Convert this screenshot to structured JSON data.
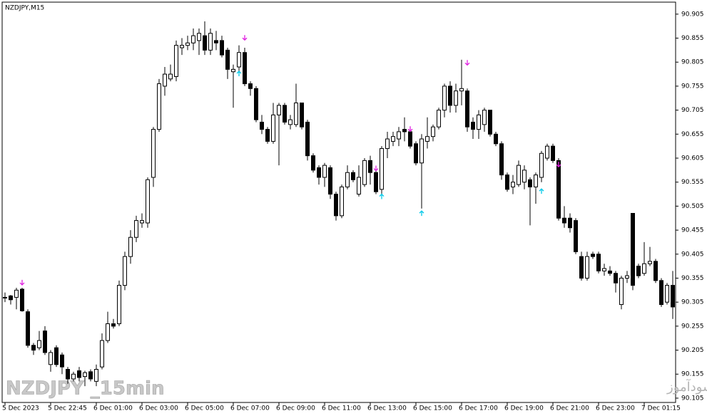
{
  "chart_data": {
    "type": "candlestick",
    "title": "NZDJPY,M15",
    "watermark": "NZDJPY _15min",
    "annotation": "انتشار در سایت سودآموز",
    "categories": [
      "5 Dec 2023",
      null,
      null,
      null,
      null,
      null,
      null,
      null,
      "5 Dec 22:45",
      null,
      null,
      null,
      null,
      null,
      null,
      null,
      "6 Dec 01:00",
      null,
      null,
      null,
      null,
      null,
      null,
      null,
      "6 Dec 03:00",
      null,
      null,
      null,
      null,
      null,
      null,
      null,
      "6 Dec 05:00",
      null,
      null,
      null,
      null,
      null,
      null,
      null,
      "6 Dec 07:00",
      null,
      null,
      null,
      null,
      null,
      null,
      null,
      "6 Dec 09:00",
      null,
      null,
      null,
      null,
      null,
      null,
      null,
      "6 Dec 11:00",
      null,
      null,
      null,
      null,
      null,
      null,
      null,
      "6 Dec 13:00",
      null,
      null,
      null,
      null,
      null,
      null,
      null,
      "6 Dec 15:00",
      null,
      null,
      null,
      null,
      null,
      null,
      null,
      "6 Dec 17:00",
      null,
      null,
      null,
      null,
      null,
      null,
      null,
      "6 Dec 19:00",
      null,
      null,
      null,
      null,
      null,
      null,
      null,
      "6 Dec 21:00",
      null,
      null,
      null,
      null,
      null,
      null,
      null,
      "6 Dec 23:00",
      null,
      null,
      null,
      null,
      null,
      null,
      null,
      "7 Dec 01:15",
      null,
      null,
      null,
      null,
      null
    ],
    "open": [
      90.315,
      90.318,
      90.315,
      90.332,
      90.285,
      90.215,
      90.21,
      90.245,
      90.175,
      90.21,
      90.195,
      90.165,
      90.145,
      90.162,
      90.15,
      90.16,
      90.14,
      90.17,
      90.225,
      90.26,
      90.26,
      90.34,
      90.4,
      90.44,
      90.47,
      90.47,
      90.565,
      90.665,
      90.755,
      90.77,
      90.775,
      90.835,
      90.84,
      90.845,
      90.85,
      90.86,
      90.83,
      90.85,
      90.85,
      90.83,
      90.785,
      90.795,
      90.825,
      90.76,
      90.75,
      90.68,
      90.665,
      90.64,
      90.695,
      90.715,
      90.675,
      90.675,
      90.72,
      90.68,
      90.61,
      90.585,
      90.565,
      90.585,
      90.53,
      90.485,
      90.545,
      90.575,
      90.53,
      90.55,
      90.6,
      90.575,
      90.54,
      90.625,
      90.64,
      90.645,
      90.665,
      90.66,
      90.635,
      90.595,
      90.64,
      90.65,
      90.67,
      90.705,
      90.755,
      90.715,
      90.745,
      90.745,
      90.68,
      90.665,
      90.675,
      90.705,
      90.655,
      90.635,
      90.57,
      90.545,
      90.55,
      90.555,
      90.56,
      90.545,
      90.565,
      90.605,
      90.63,
      90.6,
      90.48,
      90.48,
      90.475,
      90.4,
      90.355,
      90.405,
      90.405,
      90.37,
      90.37,
      90.365,
      90.3,
      90.355,
      90.49,
      90.38,
      90.365,
      90.385,
      90.39,
      90.35,
      90.305,
      90.34
    ],
    "high": [
      90.325,
      90.32,
      90.335,
      90.335,
      90.29,
      90.22,
      90.245,
      90.255,
      90.205,
      90.215,
      90.2,
      90.17,
      90.16,
      90.17,
      90.162,
      90.165,
      90.175,
      90.24,
      90.285,
      90.27,
      90.35,
      90.41,
      90.455,
      90.485,
      90.49,
      90.565,
      90.67,
      90.77,
      90.795,
      90.8,
      90.85,
      90.855,
      90.86,
      90.875,
      90.875,
      90.89,
      90.875,
      90.87,
      90.86,
      90.835,
      90.8,
      90.84,
      90.835,
      90.765,
      90.755,
      90.695,
      90.67,
      90.72,
      90.72,
      90.72,
      90.695,
      90.76,
      90.72,
      90.685,
      90.615,
      90.59,
      90.595,
      90.59,
      90.535,
      90.55,
      90.59,
      90.58,
      90.59,
      90.605,
      90.61,
      90.58,
      90.63,
      90.66,
      90.66,
      90.67,
      90.69,
      90.665,
      90.64,
      90.655,
      90.69,
      90.675,
      90.71,
      90.76,
      90.765,
      90.76,
      90.81,
      90.75,
      90.69,
      90.705,
      90.71,
      90.705,
      90.66,
      90.64,
      90.575,
      90.57,
      90.6,
      90.59,
      90.565,
      90.575,
      90.62,
      90.635,
      90.635,
      90.605,
      90.505,
      90.49,
      90.48,
      90.41,
      90.41,
      90.41,
      90.41,
      90.385,
      90.38,
      90.37,
      90.36,
      90.37,
      90.49,
      90.385,
      90.43,
      90.42,
      90.395,
      90.355,
      90.345,
      90.37
    ],
    "low": [
      90.305,
      90.3,
      90.29,
      90.285,
      90.21,
      90.195,
      90.205,
      90.195,
      90.16,
      90.17,
      90.155,
      90.135,
      90.14,
      90.14,
      90.13,
      90.14,
      90.13,
      90.165,
      90.22,
      90.25,
      90.255,
      90.33,
      90.385,
      90.43,
      90.46,
      90.46,
      90.545,
      90.66,
      90.735,
      90.765,
      90.765,
      90.82,
      90.83,
      90.83,
      90.82,
      90.82,
      90.82,
      90.83,
      90.815,
      90.77,
      90.71,
      90.785,
      90.755,
      90.735,
      90.68,
      90.655,
      90.635,
      90.635,
      90.59,
      90.675,
      90.665,
      90.67,
      90.665,
      90.6,
      90.575,
      90.55,
      90.545,
      90.52,
      90.475,
      90.48,
      90.54,
      90.555,
      90.525,
      90.545,
      90.55,
      90.53,
      90.525,
      90.605,
      90.63,
      90.63,
      90.64,
      90.625,
      90.59,
      90.5,
      90.625,
      90.64,
      90.665,
      90.69,
      90.7,
      90.7,
      90.715,
      90.66,
      90.645,
      90.645,
      90.66,
      90.65,
      90.63,
      90.56,
      90.535,
      90.53,
      90.545,
      90.54,
      90.465,
      90.51,
      90.555,
      90.6,
      90.595,
      90.475,
      90.46,
      90.45,
      90.405,
      90.35,
      90.35,
      90.395,
      90.365,
      90.36,
      90.36,
      90.325,
      90.29,
      90.345,
      90.33,
      90.355,
      90.36,
      90.38,
      90.345,
      90.295,
      90.3,
      90.27
    ],
    "close": [
      90.315,
      90.31,
      90.33,
      90.287,
      90.215,
      90.205,
      90.225,
      90.2,
      90.2,
      90.175,
      90.17,
      90.145,
      90.155,
      90.148,
      90.158,
      90.145,
      90.165,
      90.225,
      90.26,
      90.255,
      90.34,
      90.4,
      90.44,
      90.475,
      90.475,
      90.56,
      90.665,
      90.76,
      90.78,
      90.78,
      90.84,
      90.84,
      90.845,
      90.86,
      90.865,
      90.83,
      90.865,
      90.845,
      90.82,
      90.79,
      90.79,
      90.825,
      90.76,
      90.75,
      90.685,
      90.665,
      90.64,
      90.695,
      90.715,
      90.68,
      90.685,
      90.72,
      90.67,
      90.61,
      90.58,
      90.565,
      90.59,
      90.53,
      90.485,
      90.545,
      90.575,
      90.56,
      90.565,
      90.6,
      90.575,
      90.535,
      90.625,
      90.645,
      90.65,
      90.66,
      90.66,
      90.63,
      90.595,
      90.645,
      90.65,
      90.67,
      90.705,
      90.755,
      90.715,
      90.745,
      90.75,
      90.67,
      90.665,
      90.695,
      90.705,
      90.655,
      90.635,
      90.57,
      90.54,
      90.555,
      90.59,
      90.58,
      90.545,
      90.57,
      90.615,
      90.63,
      90.6,
      90.48,
      90.47,
      90.46,
      90.41,
      90.355,
      90.4,
      90.4,
      90.37,
      90.375,
      90.365,
      90.345,
      90.355,
      90.36,
      90.34,
      90.36,
      90.385,
      90.39,
      90.35,
      90.3,
      90.34,
      90.295
    ],
    "up_color": "#ffffff",
    "down_color": "#000000",
    "sell_arrows": {
      "color": "#e020e0",
      "points": [
        {
          "x": 3,
          "y": 90.341
        },
        {
          "x": 42,
          "y": 90.851
        },
        {
          "x": 65,
          "y": 90.579
        },
        {
          "x": 71,
          "y": 90.661
        },
        {
          "x": 81,
          "y": 90.799
        },
        {
          "x": 97,
          "y": 90.587
        }
      ]
    },
    "buy_arrows": {
      "color": "#00c8e8",
      "points": [
        {
          "x": 41,
          "y": 90.786
        },
        {
          "x": 66,
          "y": 90.53
        },
        {
          "x": 73,
          "y": 90.495
        },
        {
          "x": 94,
          "y": 90.541
        }
      ]
    },
    "ylim": [
      90.096,
      90.93
    ],
    "yticks": [
      90.105,
      90.155,
      90.205,
      90.255,
      90.305,
      90.355,
      90.405,
      90.455,
      90.505,
      90.555,
      90.605,
      90.655,
      90.705,
      90.755,
      90.805,
      90.855,
      90.905
    ]
  }
}
